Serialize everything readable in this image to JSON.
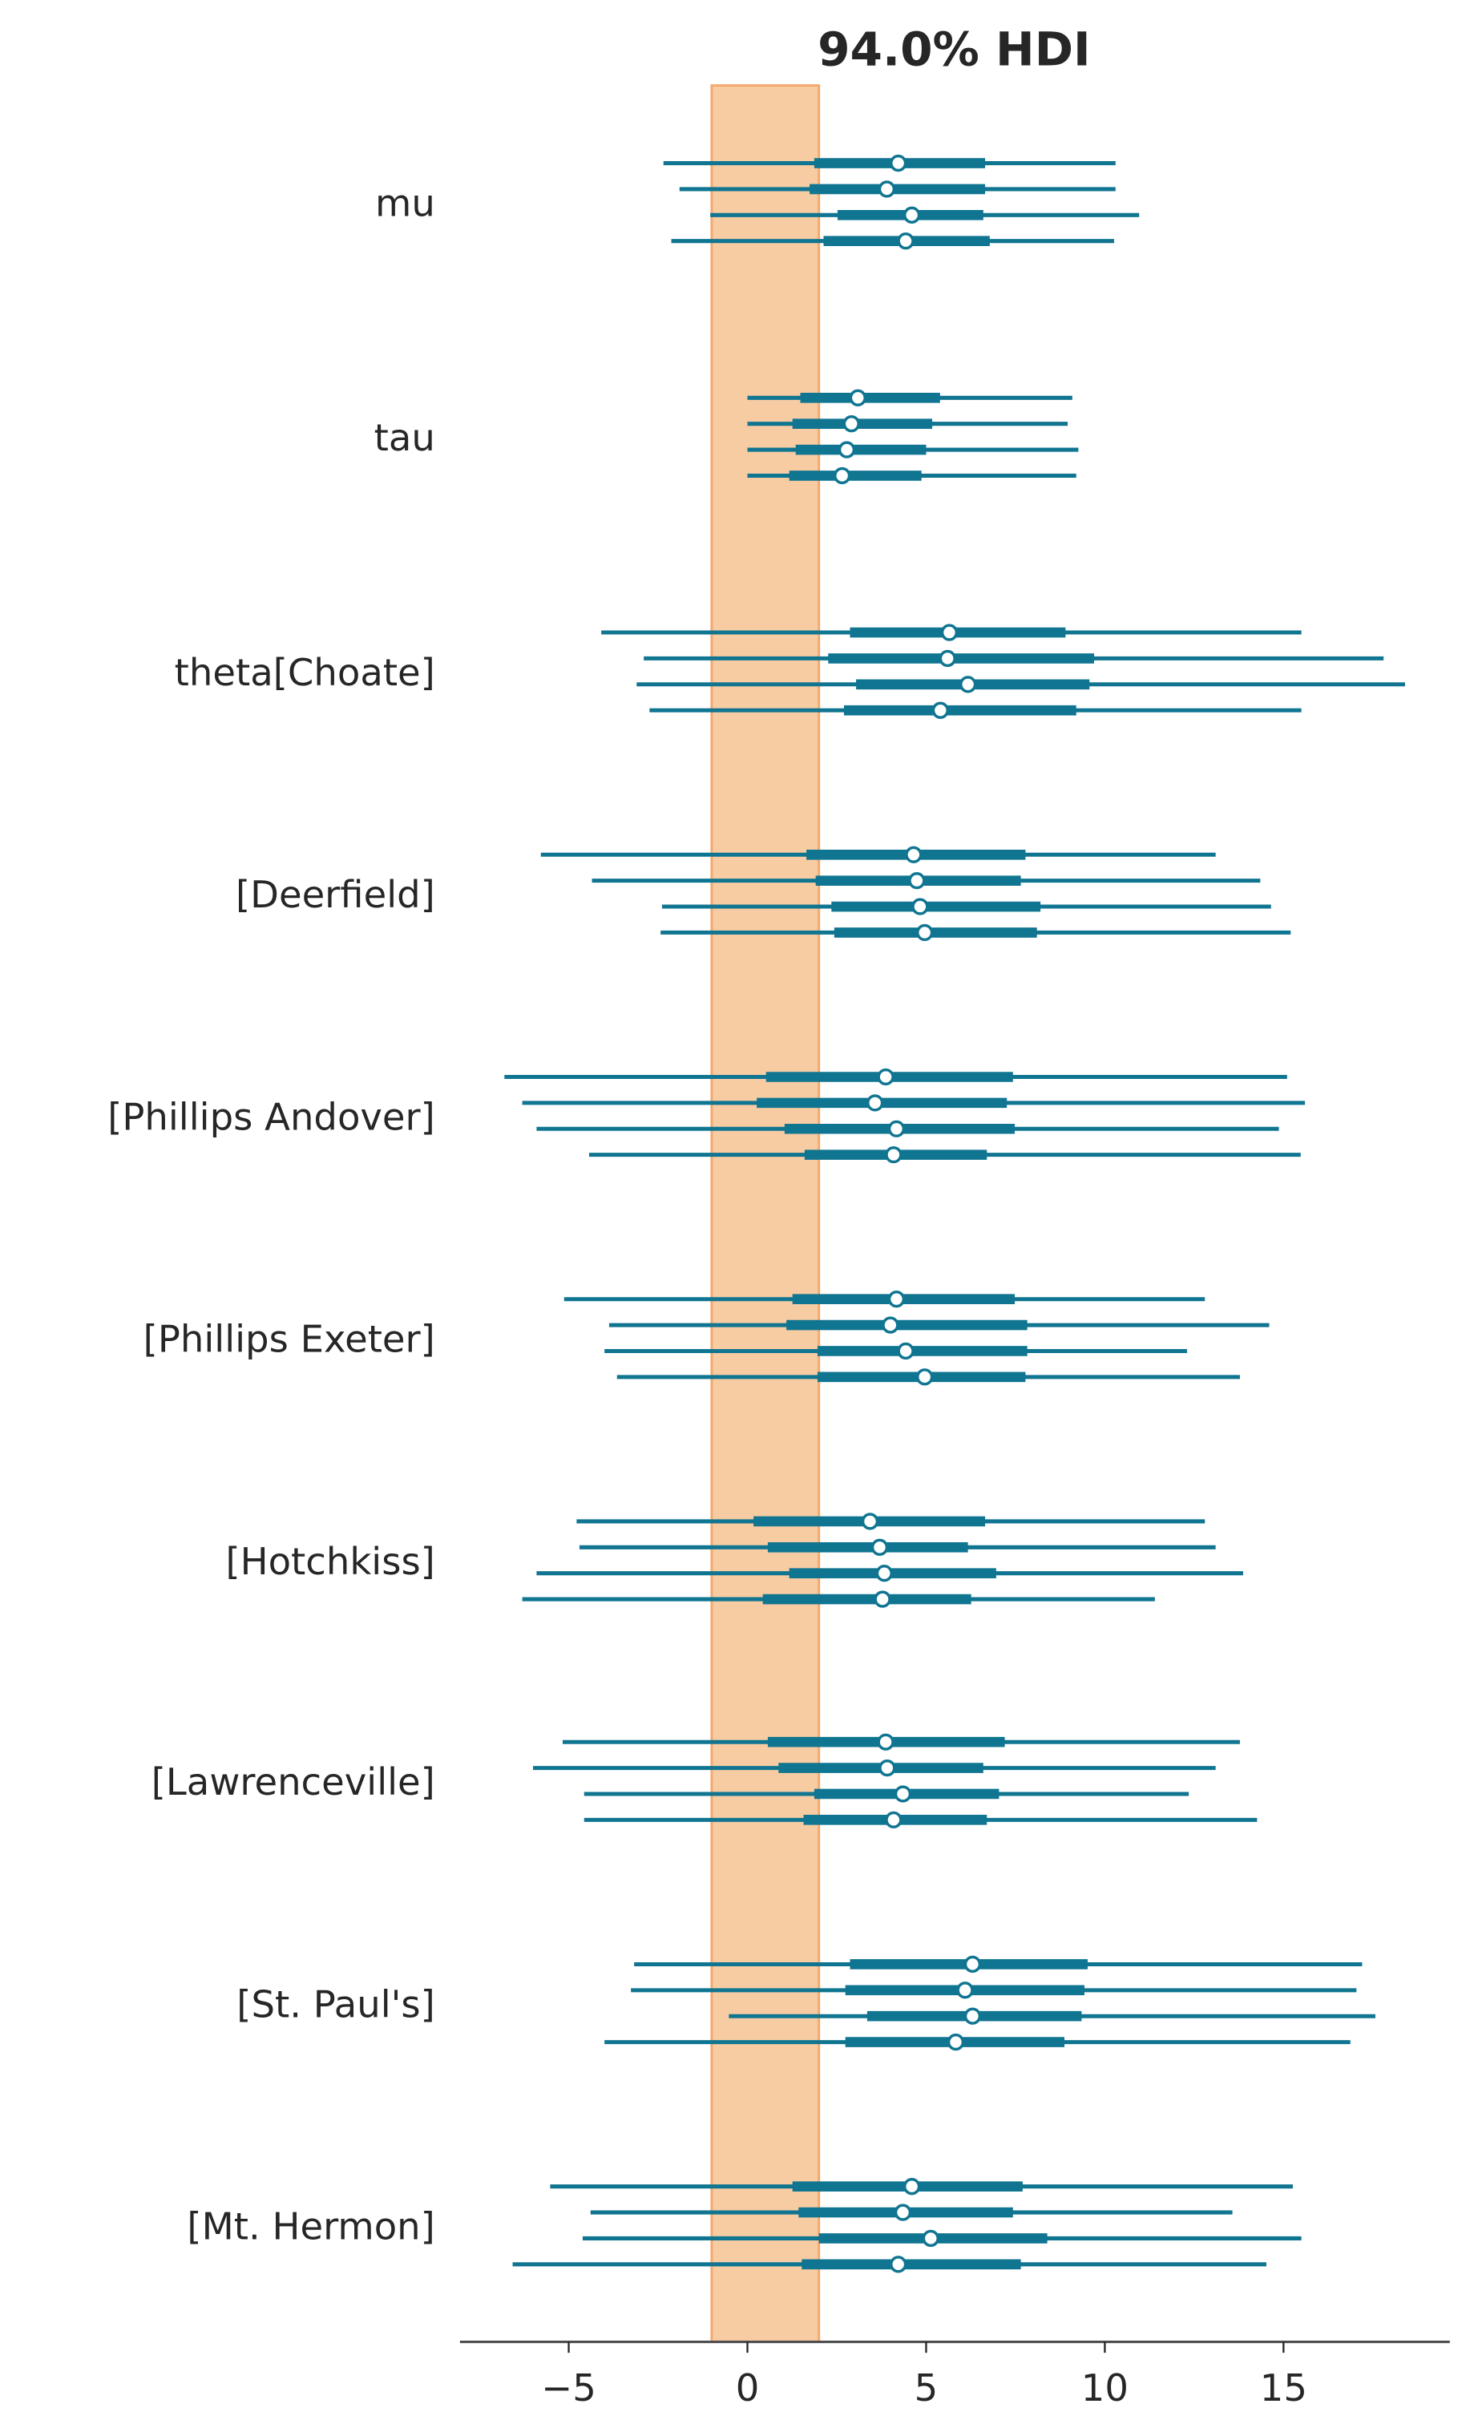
{
  "chart_data": {
    "type": "forest",
    "title": "94.0% HDI",
    "xlim": [
      -8,
      19.7
    ],
    "xticks": [
      -5,
      0,
      5,
      10,
      15
    ],
    "xtick_labels": [
      "−5",
      "0",
      "5",
      "10",
      "15"
    ],
    "grid": false,
    "rope": [
      -1,
      2
    ],
    "colors": {
      "line": "#107591",
      "rope": "#f8cca3",
      "rope_edge": "#f3a86a",
      "median_fill": "#ffffff",
      "axis": "#4d4d4d"
    },
    "point_format": [
      "hdi94_low",
      "iqr_low",
      "median",
      "iqr_high",
      "hdi94_high"
    ],
    "groups": [
      {
        "label": "mu",
        "chains": [
          [
            -2.35,
            1.87,
            4.22,
            6.65,
            10.3
          ],
          [
            -1.9,
            1.74,
            3.9,
            6.65,
            10.3
          ],
          [
            -1.04,
            2.52,
            4.6,
            6.6,
            10.96
          ],
          [
            -2.13,
            2.13,
            4.43,
            6.78,
            10.26
          ]
        ]
      },
      {
        "label": "tau",
        "chains": [
          [
            0,
            1.48,
            3.09,
            5.39,
            9.09
          ],
          [
            0,
            1.26,
            2.91,
            5.17,
            8.96
          ],
          [
            0,
            1.35,
            2.78,
            5.0,
            9.26
          ],
          [
            0,
            1.17,
            2.65,
            4.87,
            9.2
          ]
        ]
      },
      {
        "label": "theta[Choate]",
        "chains": [
          [
            -4.09,
            2.87,
            5.65,
            8.9,
            15.5
          ],
          [
            -2.9,
            2.26,
            5.6,
            9.7,
            17.8
          ],
          [
            -3.1,
            3.04,
            6.17,
            9.57,
            18.4
          ],
          [
            -2.74,
            2.7,
            5.4,
            9.2,
            15.5
          ]
        ]
      },
      {
        "label": "[Deerfield]",
        "chains": [
          [
            -5.78,
            1.65,
            4.65,
            7.78,
            13.1
          ],
          [
            -4.35,
            1.91,
            4.74,
            7.65,
            14.35
          ],
          [
            -2.39,
            2.35,
            4.83,
            8.2,
            14.65
          ],
          [
            -2.43,
            2.43,
            4.96,
            8.1,
            15.2
          ]
        ]
      },
      {
        "label": "[Phillips Andover]",
        "chains": [
          [
            -6.8,
            0.52,
            3.87,
            7.43,
            15.1
          ],
          [
            -6.3,
            0.26,
            3.57,
            7.26,
            15.6
          ],
          [
            -5.9,
            1.04,
            4.17,
            7.48,
            14.87
          ],
          [
            -4.43,
            1.6,
            4.09,
            6.7,
            15.48
          ]
        ]
      },
      {
        "label": "[Phillips Exeter]",
        "chains": [
          [
            -5.13,
            1.26,
            4.17,
            7.48,
            12.8
          ],
          [
            -3.87,
            1.09,
            4.0,
            7.83,
            14.6
          ],
          [
            -4.0,
            1.96,
            4.43,
            7.83,
            12.3
          ],
          [
            -3.65,
            1.96,
            4.96,
            7.78,
            13.78
          ]
        ]
      },
      {
        "label": "[Hotchkiss]",
        "chains": [
          [
            -4.78,
            0.17,
            3.43,
            6.65,
            12.8
          ],
          [
            -4.7,
            0.57,
            3.7,
            6.17,
            13.1
          ],
          [
            -5.9,
            1.17,
            3.83,
            6.96,
            13.87
          ],
          [
            -6.3,
            0.43,
            3.78,
            6.26,
            11.4
          ]
        ]
      },
      {
        "label": "[Lawrenceville]",
        "chains": [
          [
            -5.17,
            0.57,
            3.87,
            7.2,
            13.78
          ],
          [
            -6.0,
            0.87,
            3.91,
            6.6,
            13.1
          ],
          [
            -4.57,
            1.87,
            4.35,
            7.04,
            12.35
          ],
          [
            -4.57,
            1.57,
            4.09,
            6.7,
            14.26
          ]
        ]
      },
      {
        "label": "[St. Paul's]",
        "chains": [
          [
            -3.17,
            2.87,
            6.3,
            9.52,
            17.2
          ],
          [
            -3.26,
            2.74,
            6.09,
            9.43,
            17.04
          ],
          [
            -0.52,
            3.35,
            6.3,
            9.35,
            17.57
          ],
          [
            -4.0,
            2.74,
            5.83,
            8.87,
            16.87
          ]
        ]
      },
      {
        "label": "[Mt. Hermon]",
        "chains": [
          [
            -5.52,
            1.26,
            4.6,
            7.7,
            15.26
          ],
          [
            -4.39,
            1.43,
            4.35,
            7.43,
            13.57
          ],
          [
            -4.61,
            2.0,
            5.13,
            8.39,
            15.5
          ],
          [
            -6.57,
            1.52,
            4.22,
            7.65,
            14.52
          ]
        ]
      }
    ]
  }
}
